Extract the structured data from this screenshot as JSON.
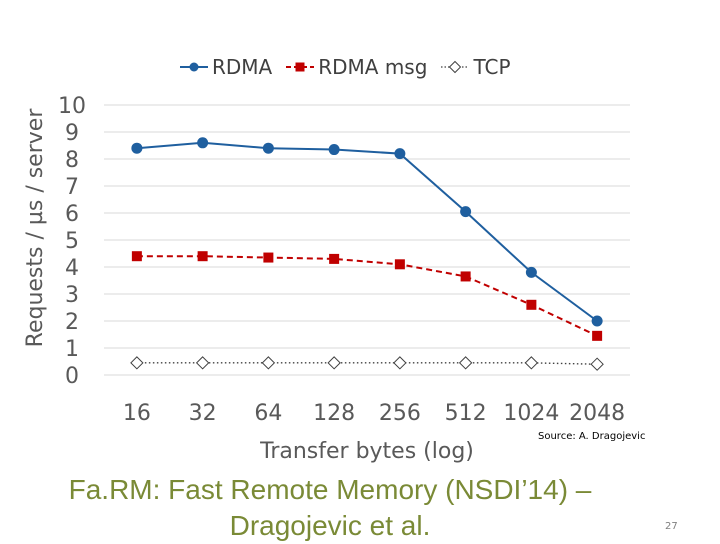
{
  "slide": {
    "title": "Fa.RM: Fast Remote Memory (NSDI’14) – Dragojevic et al.",
    "source": "Source: A. Dragojevic",
    "page_number": "27"
  },
  "colors": {
    "rdma": "#1f5f9f",
    "rdma_msg": "#c00000",
    "tcp": "#404040",
    "axis_text": "#595959",
    "grid": "#d9d9d9",
    "title": "#7a8a36"
  },
  "legend": {
    "items": [
      {
        "label": "RDMA",
        "icon": "line-circle-marker"
      },
      {
        "label": "RDMA msg",
        "icon": "dashed-line-square-marker"
      },
      {
        "label": "TCP",
        "icon": "dotted-line-diamond-marker"
      }
    ]
  },
  "chart_data": {
    "type": "line",
    "xlabel": "Transfer bytes (log)",
    "ylabel": "Requests / µs / server",
    "categories": [
      "16",
      "32",
      "64",
      "128",
      "256",
      "512",
      "1024",
      "2048"
    ],
    "yticks": [
      "0",
      "1",
      "2",
      "3",
      "4",
      "5",
      "6",
      "7",
      "8",
      "9",
      "10"
    ],
    "ylim": [
      0,
      10
    ],
    "grid": true,
    "legend_position": "top",
    "series": [
      {
        "name": "RDMA",
        "values": [
          8.4,
          8.6,
          8.4,
          8.35,
          8.2,
          6.05,
          3.8,
          2.0
        ]
      },
      {
        "name": "RDMA msg",
        "values": [
          4.4,
          4.4,
          4.35,
          4.3,
          4.1,
          3.65,
          2.6,
          1.45
        ]
      },
      {
        "name": "TCP",
        "values": [
          0.45,
          0.45,
          0.45,
          0.45,
          0.45,
          0.45,
          0.45,
          0.4
        ]
      }
    ]
  }
}
